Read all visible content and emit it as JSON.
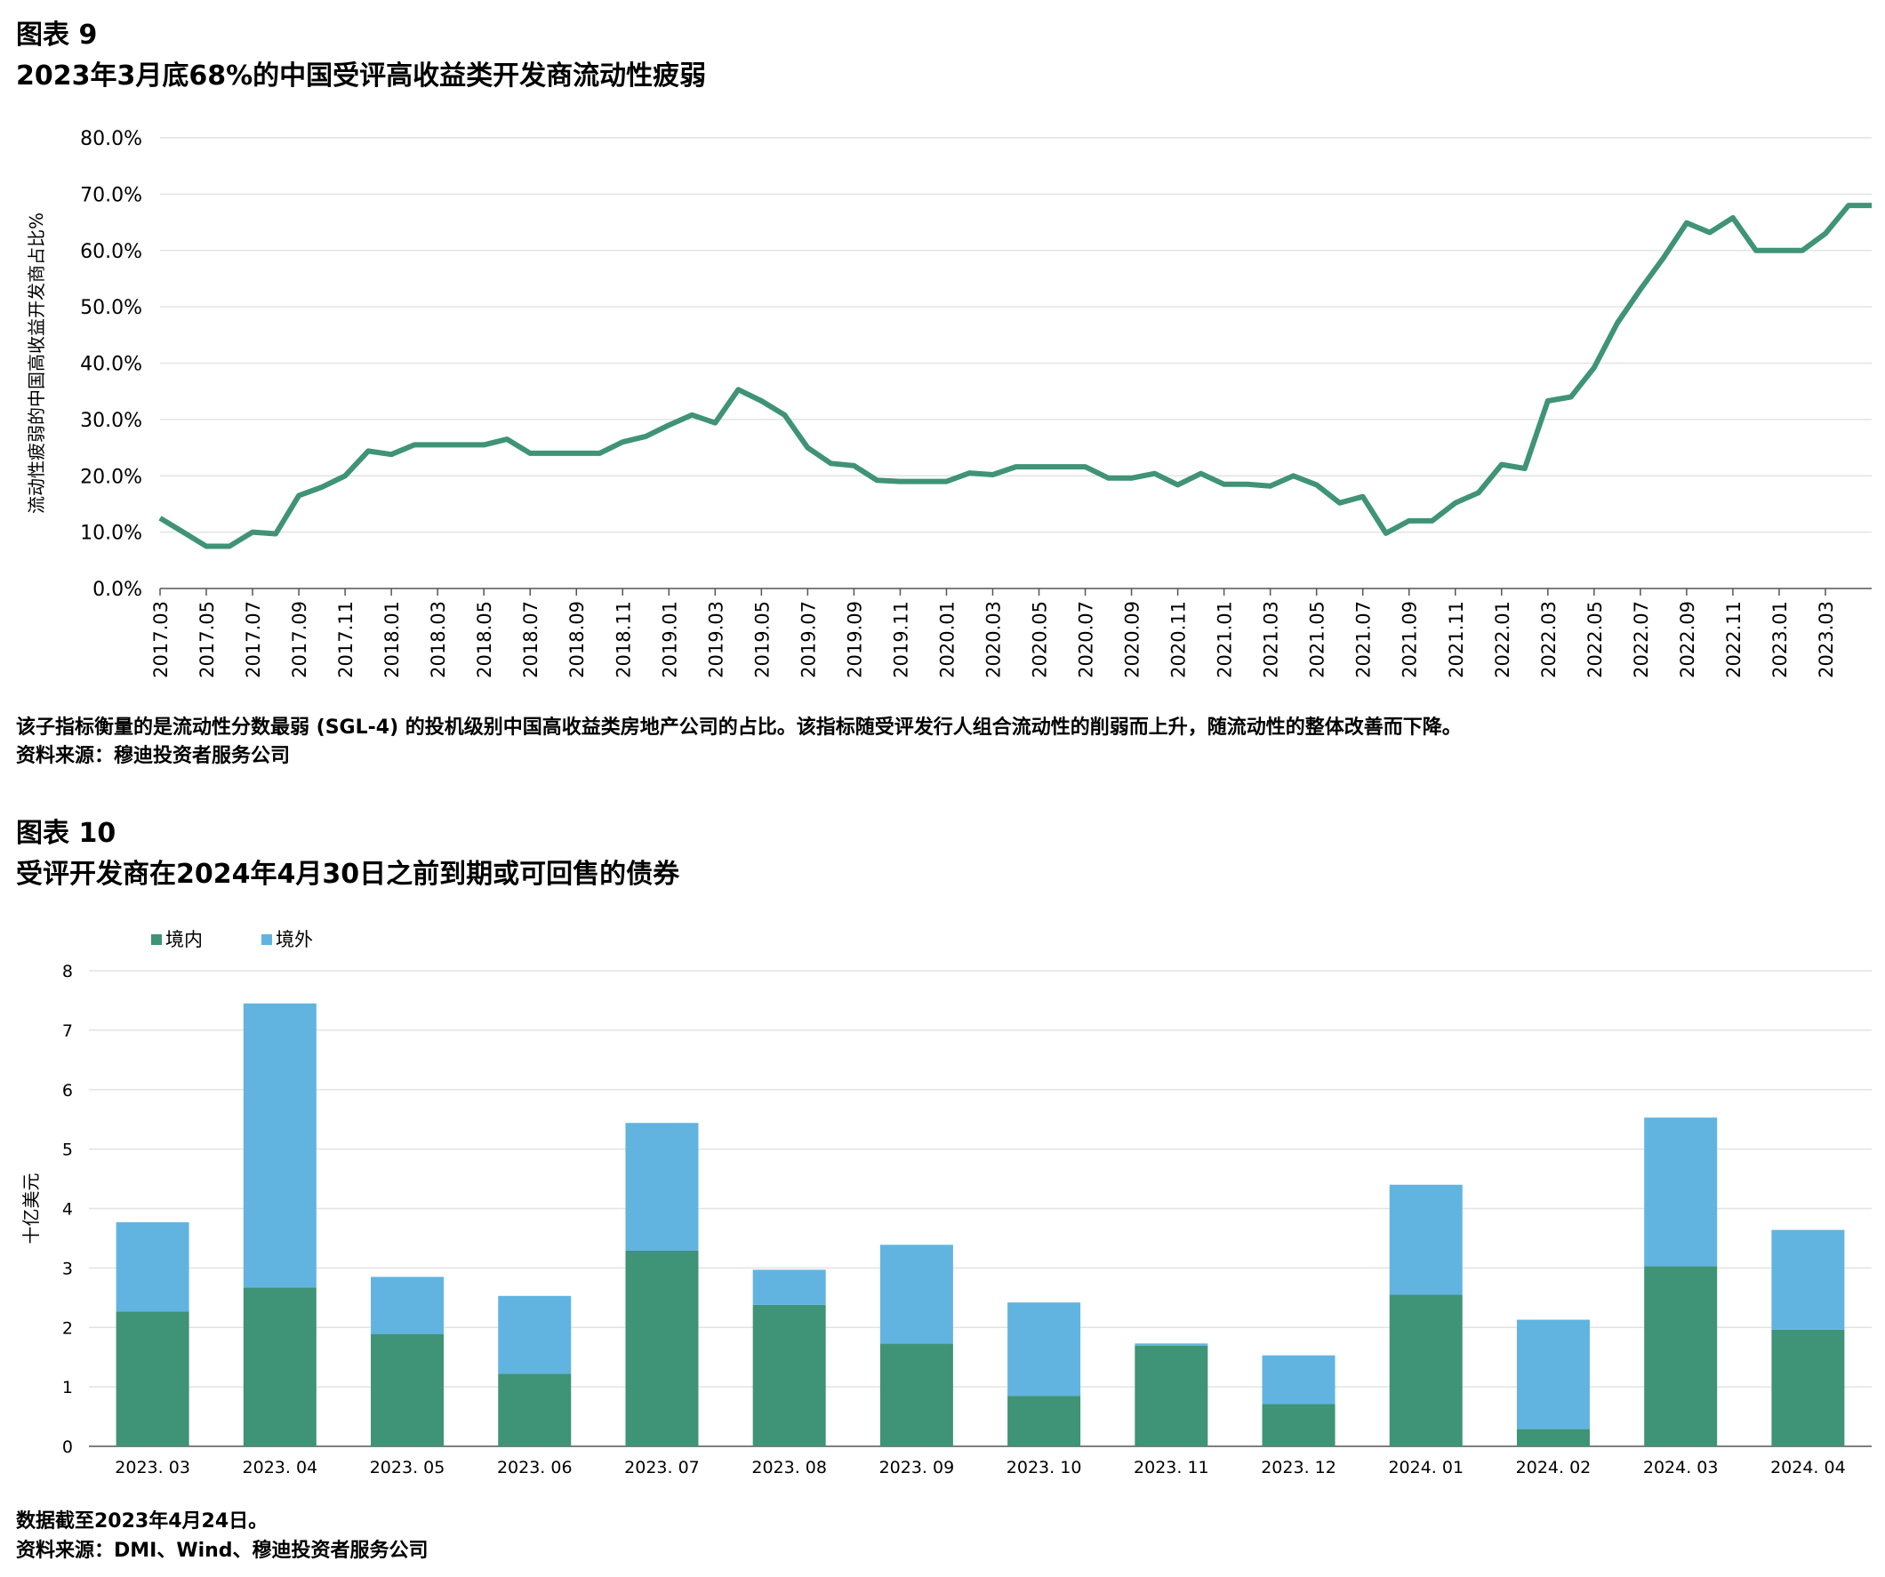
{
  "figure9": {
    "label": "图表 9",
    "title": "2023年3月底68%的中国受评高收益类开发商流动性疲弱",
    "note": "该子指标衡量的是流动性分数最弱 (SGL-4) 的投机级别中国高收益类房地产公司的占比。该指标随受评发行人组合流动性的削弱而上升，随流动性的整体改善而下降。",
    "source": "资料来源：穆迪投资者服务公司"
  },
  "figure10": {
    "label": "图表 10",
    "title": "受评开发商在2024年4月30日之前到期或可回售的债券",
    "note": "数据截至2023年4月24日。",
    "source": "资料来源：DMI、Wind、穆迪投资者服务公司"
  },
  "colors": {
    "line": "#3f9377",
    "onshore": "#3f9377",
    "offshore": "#61b4e0",
    "grid": "#e3e3e3",
    "axis": "#555555"
  },
  "chart_data": [
    {
      "type": "line",
      "title": "2023年3月底68%的中国受评高收益类开发商流动性疲弱",
      "xlabel": "",
      "ylabel": "流动性疲弱的中国高收益开发商占比%",
      "ylim": [
        0,
        80
      ],
      "y_ticks": [
        "0.0%",
        "10.0%",
        "20.0%",
        "30.0%",
        "40.0%",
        "50.0%",
        "60.0%",
        "70.0%",
        "80.0%"
      ],
      "x_tick_labels": [
        "2017.03",
        "2017.05",
        "2017.07",
        "2017.09",
        "2017.11",
        "2018.01",
        "2018.03",
        "2018.05",
        "2018.07",
        "2018.09",
        "2018.11",
        "2019.01",
        "2019.03",
        "2019.05",
        "2019.07",
        "2019.09",
        "2019.11",
        "2020.01",
        "2020.03",
        "2020.05",
        "2020.07",
        "2020.09",
        "2020.11",
        "2021.01",
        "2021.03",
        "2021.05",
        "2021.07",
        "2021.09",
        "2021.11",
        "2022.01",
        "2022.03",
        "2022.05",
        "2022.07",
        "2022.09",
        "2022.11",
        "2023.01",
        "2023.03"
      ],
      "series": [
        {
          "name": "流动性疲弱占比",
          "values": [
            12.5,
            10,
            7.5,
            7.5,
            10,
            9.7,
            16.5,
            18,
            20,
            24.4,
            23.8,
            25.5,
            25.5,
            25.5,
            25.5,
            26.5,
            24,
            24,
            24,
            24,
            26,
            27,
            29,
            30.8,
            29.4,
            35.3,
            33.3,
            30.8,
            25,
            22.2,
            21.8,
            19.2,
            19,
            19,
            19,
            20.5,
            20.2,
            21.6,
            21.6,
            21.6,
            21.6,
            19.6,
            19.6,
            20.4,
            18.4,
            20.4,
            18.5,
            18.5,
            18.2,
            20,
            18.4,
            15.2,
            16.3,
            9.8,
            12,
            12,
            15.2,
            17,
            22,
            21.3,
            33.3,
            34,
            39.2,
            47.1,
            53.1,
            58.7,
            64.9,
            63.2,
            65.8,
            60,
            60,
            60,
            63,
            68,
            68
          ]
        }
      ]
    },
    {
      "type": "bar",
      "stacked": true,
      "title": "受评开发商在2024年4月30日之前到期或可回售的债券",
      "xlabel": "",
      "ylabel": "十亿美元",
      "ylim": [
        0,
        8
      ],
      "y_ticks": [
        "0",
        "1",
        "2",
        "3",
        "4",
        "5",
        "6",
        "7",
        "8"
      ],
      "legend_position": "top-left",
      "categories": [
        "2023. 03",
        "2023. 04",
        "2023. 05",
        "2023. 06",
        "2023. 07",
        "2023. 08",
        "2023. 09",
        "2023. 10",
        "2023. 11",
        "2023. 12",
        "2024. 01",
        "2024. 02",
        "2024. 03",
        "2024. 04"
      ],
      "series": [
        {
          "name": "境内",
          "values": [
            2.27,
            2.67,
            1.89,
            1.22,
            3.29,
            2.38,
            1.73,
            0.85,
            1.69,
            0.71,
            2.55,
            0.29,
            3.03,
            1.96
          ]
        },
        {
          "name": "境外",
          "values": [
            1.5,
            4.78,
            0.96,
            1.31,
            2.15,
            0.59,
            1.66,
            1.57,
            0.04,
            0.82,
            1.85,
            1.84,
            2.5,
            1.68
          ]
        }
      ]
    }
  ]
}
